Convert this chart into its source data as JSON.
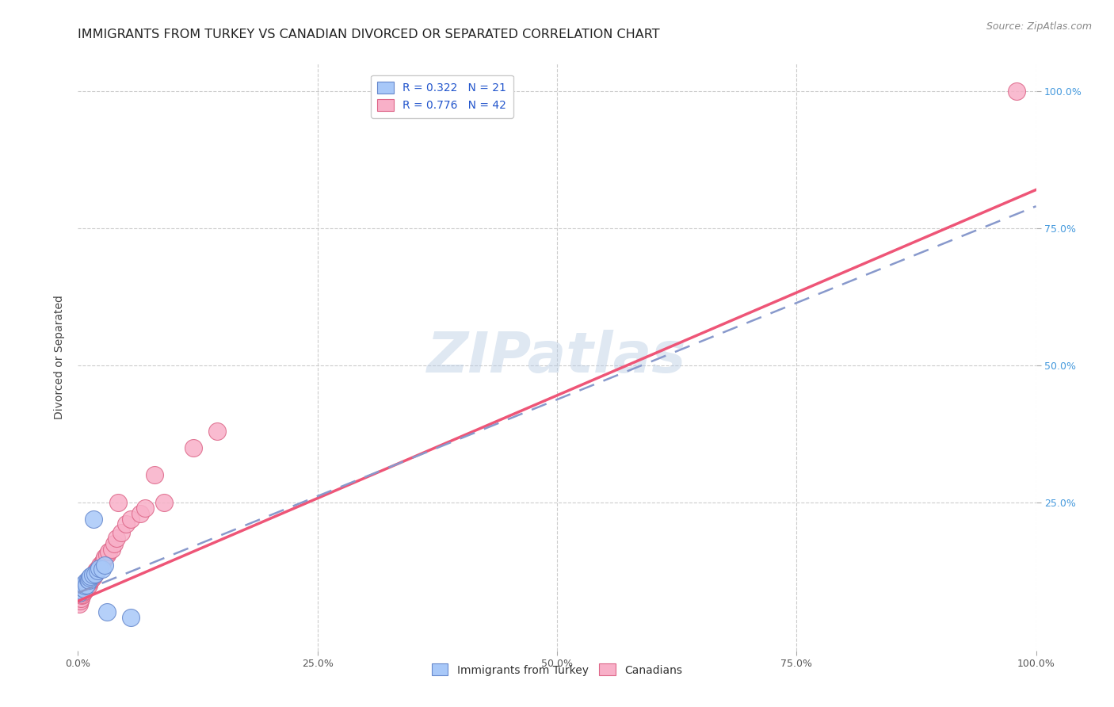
{
  "title": "IMMIGRANTS FROM TURKEY VS CANADIAN DIVORCED OR SEPARATED CORRELATION CHART",
  "source": "Source: ZipAtlas.com",
  "ylabel": "Divorced or Separated",
  "xlim": [
    0,
    1.0
  ],
  "ylim": [
    -0.02,
    1.05
  ],
  "watermark_text": "ZIPatlas",
  "legend_labels": [
    "Immigrants from Turkey",
    "Canadians"
  ],
  "r_turkey": 0.322,
  "n_turkey": 21,
  "r_canada": 0.776,
  "n_canada": 42,
  "scatter_turkey_x": [
    0.001,
    0.003,
    0.004,
    0.005,
    0.006,
    0.007,
    0.008,
    0.009,
    0.01,
    0.011,
    0.012,
    0.013,
    0.015,
    0.016,
    0.018,
    0.02,
    0.022,
    0.025,
    0.028,
    0.03,
    0.055
  ],
  "scatter_turkey_y": [
    0.085,
    0.09,
    0.095,
    0.1,
    0.092,
    0.098,
    0.105,
    0.1,
    0.11,
    0.108,
    0.112,
    0.115,
    0.118,
    0.22,
    0.12,
    0.125,
    0.13,
    0.128,
    0.135,
    0.05,
    0.04
  ],
  "scatter_canada_x": [
    0.001,
    0.002,
    0.003,
    0.004,
    0.005,
    0.005,
    0.006,
    0.007,
    0.008,
    0.009,
    0.01,
    0.011,
    0.012,
    0.013,
    0.014,
    0.015,
    0.016,
    0.017,
    0.018,
    0.019,
    0.02,
    0.022,
    0.023,
    0.025,
    0.027,
    0.028,
    0.03,
    0.032,
    0.035,
    0.038,
    0.04,
    0.042,
    0.045,
    0.05,
    0.055,
    0.065,
    0.07,
    0.08,
    0.09,
    0.12,
    0.145,
    0.98
  ],
  "scatter_canada_y": [
    0.065,
    0.07,
    0.075,
    0.08,
    0.082,
    0.085,
    0.088,
    0.09,
    0.092,
    0.095,
    0.098,
    0.1,
    0.105,
    0.108,
    0.11,
    0.112,
    0.115,
    0.118,
    0.12,
    0.125,
    0.128,
    0.13,
    0.135,
    0.14,
    0.145,
    0.15,
    0.155,
    0.16,
    0.165,
    0.175,
    0.185,
    0.25,
    0.195,
    0.21,
    0.22,
    0.23,
    0.24,
    0.3,
    0.25,
    0.35,
    0.38,
    1.0
  ],
  "color_turkey": "#a8c8f8",
  "color_canada": "#f8b0c8",
  "edge_turkey": "#6688cc",
  "edge_canada": "#dd6688",
  "line_turkey_color": "#8899cc",
  "line_canada_color": "#ee5577",
  "grid_color": "#cccccc",
  "background_color": "#ffffff",
  "title_fontsize": 11.5,
  "axis_label_fontsize": 10,
  "tick_fontsize": 9,
  "legend_fontsize": 10,
  "source_fontsize": 9,
  "canada_line_x0": 0.0,
  "canada_line_y0": 0.07,
  "canada_line_x1": 1.0,
  "canada_line_y1": 0.82,
  "turkey_line_x0": 0.0,
  "turkey_line_y0": 0.085,
  "turkey_line_x1": 1.0,
  "turkey_line_y1": 0.79
}
